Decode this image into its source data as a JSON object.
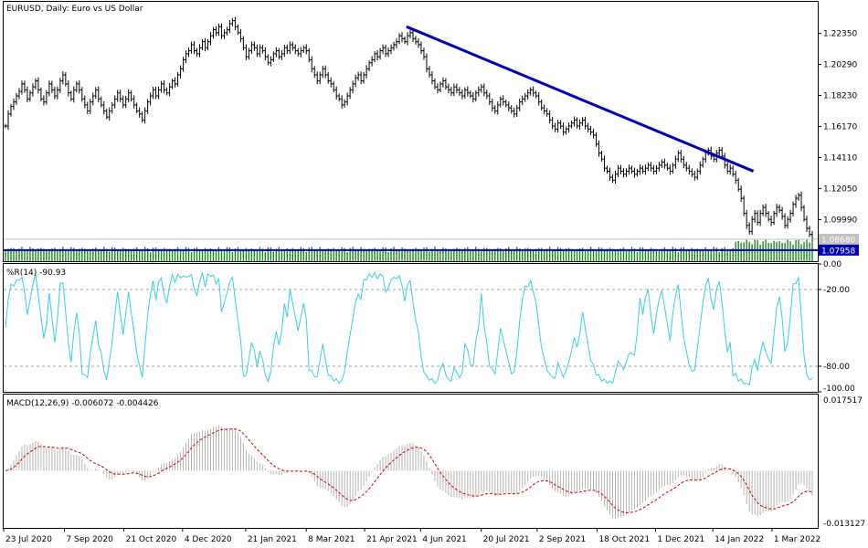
{
  "chart_data": [
    {
      "type": "ohlc",
      "title": "EURUSD, Daily:  Euro vs US Dollar",
      "ylim": [
        1.0722,
        1.2445
      ],
      "yticks": [
        1.2235,
        1.2029,
        1.1823,
        1.1617,
        1.1411,
        1.1205,
        1.0999
      ],
      "ytick_labels": [
        "1.22350",
        "1.20290",
        "1.18230",
        "1.16170",
        "1.14110",
        "1.12050",
        "1.09990"
      ],
      "close_series": [
        1.162,
        1.17,
        1.175,
        1.178,
        1.182,
        1.185,
        1.19,
        1.186,
        1.18,
        1.184,
        1.188,
        1.192,
        1.186,
        1.18,
        1.178,
        1.184,
        1.19,
        1.186,
        1.182,
        1.186,
        1.192,
        1.196,
        1.19,
        1.184,
        1.18,
        1.186,
        1.19,
        1.186,
        1.18,
        1.176,
        1.172,
        1.178,
        1.182,
        1.186,
        1.18,
        1.176,
        1.172,
        1.168,
        1.172,
        1.176,
        1.18,
        1.184,
        1.18,
        1.176,
        1.18,
        1.184,
        1.18,
        1.176,
        1.172,
        1.17,
        1.166,
        1.172,
        1.178,
        1.182,
        1.186,
        1.182,
        1.186,
        1.19,
        1.186,
        1.184,
        1.188,
        1.192,
        1.19,
        1.196,
        1.2,
        1.206,
        1.21,
        1.212,
        1.216,
        1.212,
        1.21,
        1.214,
        1.218,
        1.214,
        1.218,
        1.222,
        1.226,
        1.224,
        1.228,
        1.222,
        1.224,
        1.226,
        1.23,
        1.232,
        1.228,
        1.224,
        1.22,
        1.214,
        1.208,
        1.212,
        1.216,
        1.214,
        1.21,
        1.214,
        1.212,
        1.208,
        1.204,
        1.206,
        1.21,
        1.212,
        1.208,
        1.21,
        1.214,
        1.212,
        1.216,
        1.214,
        1.212,
        1.21,
        1.212,
        1.214,
        1.212,
        1.206,
        1.2,
        1.196,
        1.192,
        1.196,
        1.2,
        1.196,
        1.192,
        1.19,
        1.186,
        1.182,
        1.18,
        1.176,
        1.178,
        1.182,
        1.186,
        1.19,
        1.194,
        1.196,
        1.192,
        1.196,
        1.2,
        1.204,
        1.206,
        1.21,
        1.208,
        1.212,
        1.214,
        1.21,
        1.212,
        1.214,
        1.216,
        1.218,
        1.222,
        1.22,
        1.218,
        1.222,
        1.224,
        1.22,
        1.218,
        1.216,
        1.212,
        1.208,
        1.2,
        1.196,
        1.192,
        1.188,
        1.186,
        1.19,
        1.192,
        1.188,
        1.186,
        1.184,
        1.188,
        1.186,
        1.184,
        1.182,
        1.186,
        1.184,
        1.182,
        1.18,
        1.184,
        1.186,
        1.188,
        1.184,
        1.182,
        1.178,
        1.174,
        1.172,
        1.176,
        1.18,
        1.178,
        1.176,
        1.174,
        1.172,
        1.17,
        1.174,
        1.178,
        1.18,
        1.182,
        1.184,
        1.186,
        1.184,
        1.182,
        1.178,
        1.174,
        1.172,
        1.17,
        1.166,
        1.162,
        1.16,
        1.164,
        1.162,
        1.158,
        1.16,
        1.162,
        1.164,
        1.166,
        1.162,
        1.164,
        1.166,
        1.162,
        1.16,
        1.158,
        1.156,
        1.15,
        1.144,
        1.14,
        1.134,
        1.132,
        1.128,
        1.126,
        1.13,
        1.134,
        1.132,
        1.13,
        1.132,
        1.134,
        1.132,
        1.13,
        1.132,
        1.134,
        1.132,
        1.134,
        1.136,
        1.134,
        1.132,
        1.134,
        1.136,
        1.138,
        1.136,
        1.134,
        1.132,
        1.136,
        1.14,
        1.144,
        1.14,
        1.136,
        1.134,
        1.132,
        1.13,
        1.128,
        1.132,
        1.136,
        1.14,
        1.144,
        1.146,
        1.142,
        1.14,
        1.144,
        1.146,
        1.142,
        1.136,
        1.132,
        1.134,
        1.13,
        1.126,
        1.12,
        1.114,
        1.104,
        1.096,
        1.092,
        1.1,
        1.104,
        1.098,
        1.104,
        1.108,
        1.104,
        1.1,
        1.098,
        1.104,
        1.108,
        1.106,
        1.102,
        1.096,
        1.1,
        1.104,
        1.11,
        1.114,
        1.116,
        1.108,
        1.1,
        1.094,
        1.09,
        1.087
      ],
      "trendline": {
        "from": [
          1.228,
          0.497
        ],
        "to": [
          1.132,
          0.927
        ]
      },
      "hlines": [
        {
          "price": 1.0868,
          "label": "1.08680",
          "color": "#c0c0c0"
        },
        {
          "price": 1.07958,
          "label": "1.07958",
          "color": "#0000b4"
        }
      ],
      "volume": true
    },
    {
      "type": "line",
      "title": "%R(14) -90.93",
      "ylim": [
        -100,
        0
      ],
      "yticks": [
        0,
        -20,
        -80,
        -100
      ],
      "ytick_labels": [
        "0.00",
        "-20.00",
        "-80.00",
        "-100.00"
      ],
      "levels": [
        -20,
        -80
      ],
      "color": "#38d0e0"
    },
    {
      "type": "histogram+line",
      "title": "MACD(12,26,9) -0.006072 -0.004426",
      "ylim": [
        -0.013127,
        0.017517
      ],
      "ytick_labels": [
        "0.017517",
        "-0.013127"
      ],
      "signal_color": "#d00000"
    }
  ],
  "x_axis": {
    "tick_labels": [
      "23 Jul 2020",
      "7 Sep 2020",
      "21 Oct 2020",
      "4 Dec 2020",
      "21 Jan 2021",
      "8 Mar 2021",
      "21 Apr 2021",
      "4 Jun 2021",
      "20 Jul 2021",
      "2 Sep 2021",
      "18 Oct 2021",
      "1 Dec 2021",
      "14 Jan 2022",
      "1 Mar 2022"
    ],
    "tick_positions": [
      0.0,
      0.0747,
      0.1477,
      0.2198,
      0.2973,
      0.3717,
      0.4434,
      0.5122,
      0.5866,
      0.6553,
      0.7289,
      0.8007,
      0.8711,
      0.9438
    ]
  }
}
